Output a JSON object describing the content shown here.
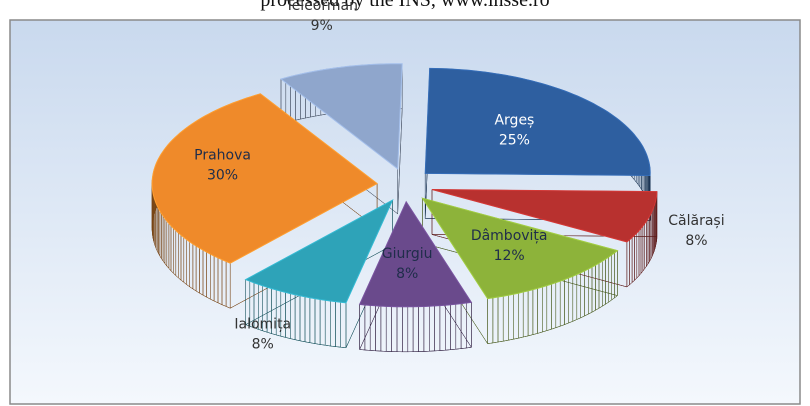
{
  "chart_data": {
    "type": "pie3d",
    "subtitle": "processed by the INS, www.insse.ro",
    "categories": [
      "Argeș",
      "Călărași",
      "Dâmbovița",
      "Giurgiu",
      "Ialomița",
      "Prahova",
      "Teleorman"
    ],
    "values": [
      25,
      8,
      12,
      8,
      8,
      30,
      9
    ],
    "value_labels": [
      "25%",
      "8%",
      "12%",
      "8%",
      "8%",
      "30%",
      "9%"
    ],
    "colors": [
      "#2e5fa0",
      "#b8312f",
      "#8db33a",
      "#6a4a8c",
      "#2ea3b8",
      "#ef8a2a",
      "#8fa6cc"
    ]
  }
}
